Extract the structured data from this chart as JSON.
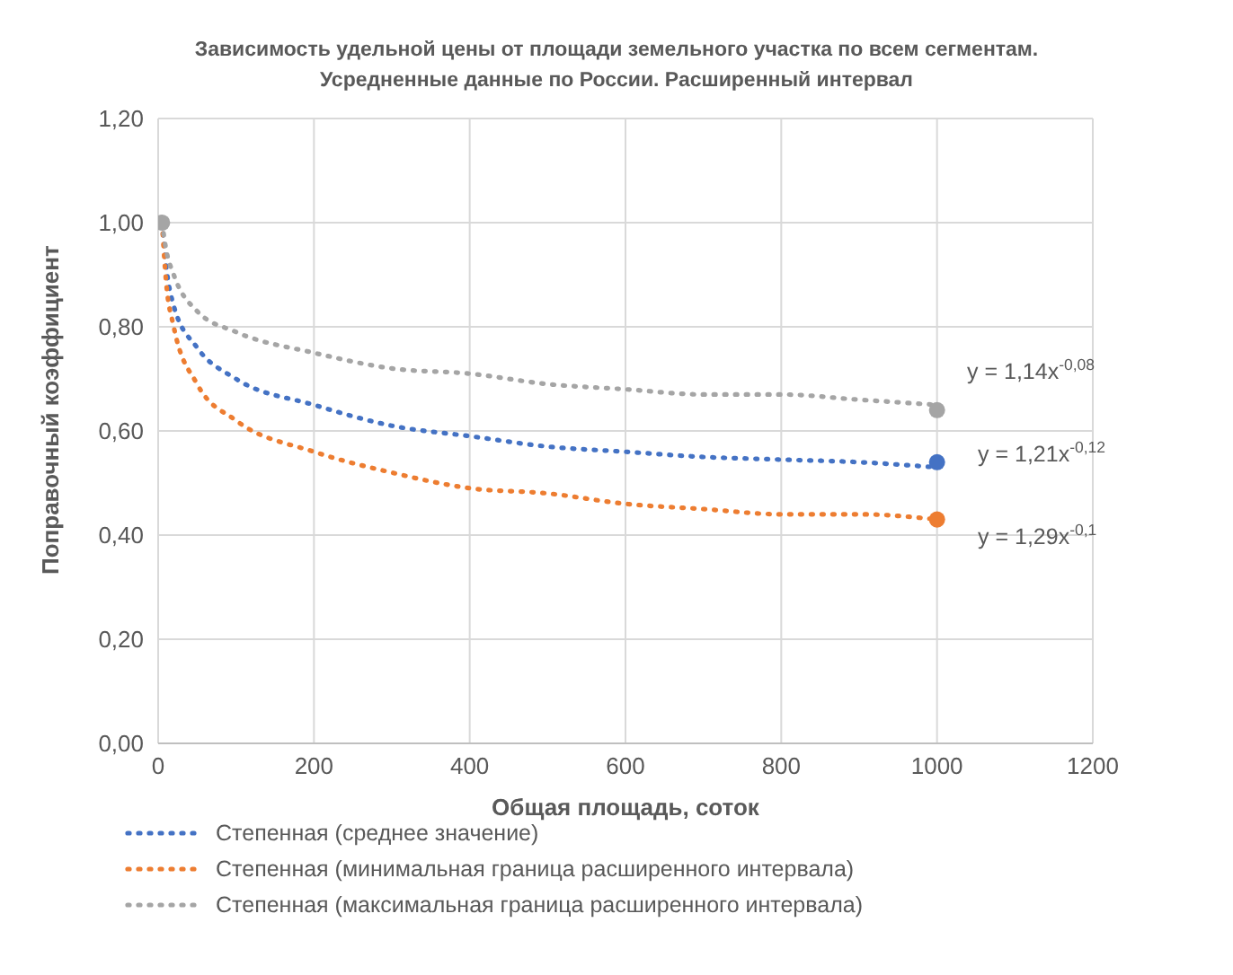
{
  "chart_data": {
    "type": "line",
    "title": "Зависимость удельной цены от площади земельного участка по всем сегментам.\nУсредненные данные по России. Расширенный интервал",
    "xlabel": "Общая площадь, соток",
    "ylabel": "Поправочный коэффициент",
    "xlim": [
      0,
      1200
    ],
    "xticks": [
      0,
      200,
      400,
      600,
      800,
      1000,
      1200
    ],
    "ylim": [
      0,
      1.2
    ],
    "yticks": [
      {
        "value": 0,
        "label": "0,00"
      },
      {
        "value": 0.2,
        "label": "0,20"
      },
      {
        "value": 0.4,
        "label": "0,40"
      },
      {
        "value": 0.6,
        "label": "0,60"
      },
      {
        "value": 0.8,
        "label": "0,80"
      },
      {
        "value": 1,
        "label": "1,00"
      },
      {
        "value": 1.2,
        "label": "1,20"
      }
    ],
    "grid": true,
    "legend": "bottom",
    "line_style": "dotted",
    "marker": "none",
    "series": [
      {
        "type": "scatter",
        "color": "#4472c4",
        "x": [
          1000
        ],
        "values": [
          0.54
        ],
        "marker": "circle"
      },
      {
        "type": "scatter",
        "color": "#ed7d31",
        "x": [
          1000
        ],
        "values": [
          0.43
        ],
        "marker": "circle"
      },
      {
        "type": "scatter",
        "color": "#a5a5a5",
        "x": [
          5,
          1000
        ],
        "values": [
          1.0,
          0.64
        ],
        "marker": "circle"
      },
      {
        "name": "Степенная (среднее значение)",
        "color": "#4472c4",
        "x": [
          5,
          10,
          20,
          50,
          100,
          200,
          300,
          400,
          500,
          600,
          700,
          800,
          900,
          1000
        ],
        "values": [
          1.0,
          0.92,
          0.84,
          0.76,
          0.7,
          0.65,
          0.61,
          0.59,
          0.57,
          0.56,
          0.55,
          0.545,
          0.54,
          0.53
        ]
      },
      {
        "name": "Степенная (минимальная граница расширенного интервала)",
        "color": "#ed7d31",
        "x": [
          5,
          10,
          20,
          50,
          100,
          200,
          300,
          400,
          500,
          600,
          700,
          800,
          900,
          1000
        ],
        "values": [
          1.0,
          0.89,
          0.8,
          0.69,
          0.62,
          0.56,
          0.52,
          0.49,
          0.48,
          0.46,
          0.45,
          0.44,
          0.44,
          0.43
        ]
      },
      {
        "name": "Степенная (максимальная граница расширенного интервала)",
        "color": "#a5a5a5",
        "x": [
          5,
          10,
          20,
          50,
          100,
          200,
          300,
          400,
          500,
          600,
          700,
          800,
          900,
          1000
        ],
        "values": [
          1.0,
          0.95,
          0.9,
          0.83,
          0.79,
          0.75,
          0.72,
          0.71,
          0.69,
          0.68,
          0.67,
          0.67,
          0.66,
          0.65
        ]
      }
    ],
    "annotations": [
      "y = 1,14x$^{-0,08}$",
      "y = 1,21x$^{-0,12}$",
      "y = 1,29x$^{-0,1}$"
    ]
  }
}
